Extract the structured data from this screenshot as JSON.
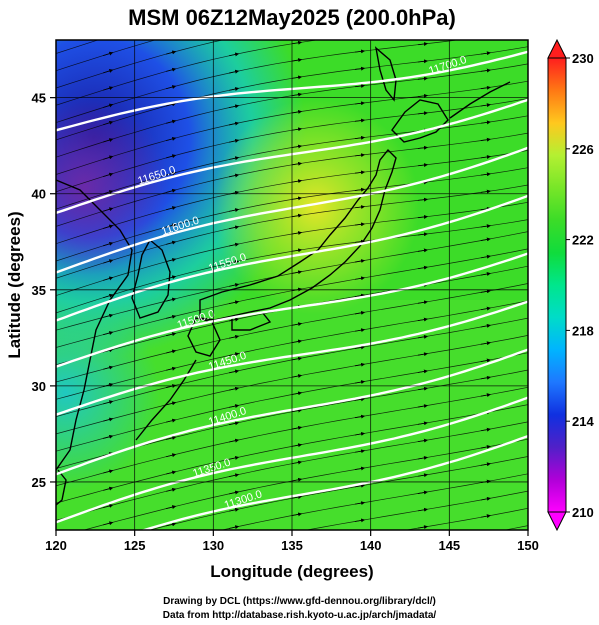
{
  "chart_data": {
    "type": "heatmap",
    "title": "MSM 06Z12May2025 (200.0hPa)",
    "xlabel": "Longitude (degrees)",
    "ylabel": "Latitude  (degrees)",
    "xlim": [
      120,
      150
    ],
    "ylim": [
      22.5,
      48
    ],
    "x_ticks": [
      "120",
      "125",
      "130",
      "135",
      "140",
      "145",
      "150"
    ],
    "x_tick_values": [
      120,
      125,
      130,
      135,
      140,
      145,
      150
    ],
    "y_ticks": [
      "25",
      "30",
      "35",
      "40",
      "45"
    ],
    "y_tick_values": [
      25,
      30,
      35,
      40,
      45
    ],
    "grid": true,
    "colorbar": {
      "min": 210,
      "max": 230,
      "labels": [
        "230",
        "226",
        "222",
        "218",
        "214",
        "210"
      ],
      "label_values": [
        230,
        226,
        222,
        218,
        214,
        210
      ],
      "extend": "both",
      "colors": [
        "#ff00ff",
        "#b000d8",
        "#5020c8",
        "#1030e0",
        "#1e78ff",
        "#00b4ff",
        "#00dcc8",
        "#00e68c",
        "#10dc3c",
        "#3cdc28",
        "#78e628",
        "#b4f032",
        "#ffc81e",
        "#ff7814",
        "#ff1e1e"
      ]
    },
    "contours": [
      {
        "label": "11700.0",
        "value": 11700,
        "lat_at_150": 47.5,
        "slope": 0.14,
        "label_lon": 145
      },
      {
        "label": "11650.0",
        "value": 11650,
        "lat_at_150": 45.0,
        "slope": 0.2,
        "label_lon": 0
      },
      {
        "label": "11600.0",
        "value": 11600,
        "lat_at_150": 42.5,
        "slope": 0.22,
        "label_lon": 0
      },
      {
        "label": "11550.0",
        "value": 11550,
        "lat_at_150": 40.0,
        "slope": 0.22,
        "label_lon": 0
      },
      {
        "label": "11500.0",
        "value": 11500,
        "lat_at_150": 37.0,
        "slope": 0.2,
        "label_lon": 0
      },
      {
        "label": "11450.0",
        "value": 11450,
        "lat_at_150": 34.5,
        "slope": 0.2,
        "label_lon": 0
      },
      {
        "label": "11400.0",
        "value": 11400,
        "lat_at_150": 32.0,
        "slope": 0.22,
        "label_lon": 0
      },
      {
        "label": "11350.0",
        "value": 11350,
        "lat_at_150": 29.5,
        "slope": 0.22,
        "label_lon": 0
      },
      {
        "label": "11300.0",
        "value": 11300,
        "lat_at_150": 27.5,
        "slope": 0.22,
        "label_lon": 0
      }
    ],
    "annotations": [
      "11700.0",
      "11650.0",
      "11600.0",
      "11550.0",
      "11500.0",
      "11450.0",
      "11400.0",
      "11350.0",
      "11300.0"
    ]
  },
  "credits": {
    "line1": "Drawing by DCL (https://www.gfd-dennou.org/library/dcl/)",
    "line2": "Data from http://database.rish.kyoto-u.ac.jp/arch/jmadata/"
  }
}
